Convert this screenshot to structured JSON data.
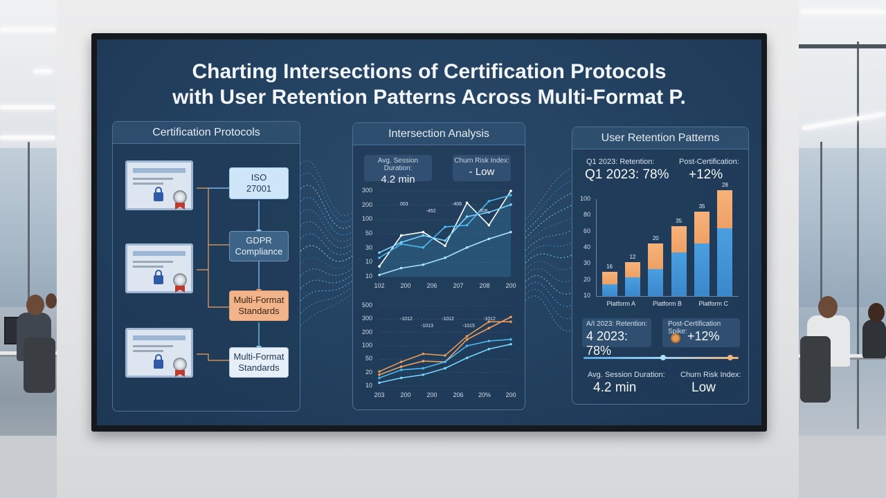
{
  "title_line1": "Charting Intersections of Certification Protocols",
  "title_line2": "with User Retention Patterns Across Multi-Format P.",
  "left_panel": {
    "header": "Certification Protocols",
    "flow": [
      {
        "line1": "ISO",
        "line2": "27001"
      },
      {
        "line1": "GDPR",
        "line2": "Compliance"
      },
      {
        "line1": "Multi-Format",
        "line2": "Standards"
      },
      {
        "line1": "Multi-Format",
        "line2": "Standards"
      }
    ]
  },
  "middle_panel": {
    "header": "Intersection Analysis",
    "metric1_label": "Avg. Session Duration:",
    "metric1_value": "4.2 min",
    "metric2_label": "Churn Risk Index:",
    "metric2_value": "- Low",
    "chart_data": [
      {
        "type": "line",
        "y_ticks": [
          "300",
          "200",
          "100",
          "50",
          "30",
          "10",
          "10"
        ],
        "x_ticks": [
          "102",
          "200",
          "206",
          "207",
          "208",
          "200"
        ],
        "point_labels": [
          "003",
          "-452",
          "-406",
          "-308"
        ],
        "series": [
          {
            "values": [
              0.12,
              0.48,
              0.52,
              0.36,
              0.86,
              0.6,
              1.0
            ]
          },
          {
            "values": [
              0.22,
              0.38,
              0.34,
              0.58,
              0.6,
              0.88,
              0.95
            ]
          },
          {
            "values": [
              0.28,
              0.4,
              0.48,
              0.42,
              0.7,
              0.75,
              0.84
            ]
          },
          {
            "values": [
              0.02,
              0.1,
              0.14,
              0.22,
              0.34,
              0.44,
              0.52
            ]
          }
        ]
      },
      {
        "type": "line",
        "y_ticks": [
          "500",
          "300",
          "200",
          "100",
          "50",
          "20",
          "10"
        ],
        "x_ticks": [
          "203",
          "200",
          "200",
          "206",
          "20%",
          "200"
        ],
        "point_labels": [
          "-1012",
          "-1013",
          "-1012",
          "-1015",
          "-1012"
        ],
        "series": [
          {
            "values": [
              0.14,
              0.24,
              0.31,
              0.3,
              0.58,
              0.72,
              0.86
            ]
          },
          {
            "values": [
              0.18,
              0.3,
              0.4,
              0.38,
              0.62,
              0.8,
              0.8
            ]
          },
          {
            "values": [
              0.1,
              0.2,
              0.22,
              0.3,
              0.5,
              0.56,
              0.58
            ]
          },
          {
            "values": [
              0.04,
              0.1,
              0.14,
              0.22,
              0.35,
              0.46,
              0.52
            ]
          }
        ]
      }
    ]
  },
  "right_panel": {
    "header": "User Retention Patterns",
    "q1_label": "Q1 2023: Retention:",
    "q1_value": "Q1 2023: 78%",
    "post_label": "Post-Certification:",
    "post_value": "+12%",
    "chart_data": {
      "type": "bar",
      "categories": [
        "Platform A",
        "Platform B",
        "Platform C"
      ],
      "y_ticks": [
        "100",
        "80",
        "60",
        "40",
        "30",
        "20",
        "10"
      ],
      "bar_labels": [
        "16",
        "12",
        "20",
        "35",
        "35",
        "28"
      ],
      "bars": [
        {
          "bottom": 0.12,
          "top": 0.13
        },
        {
          "bottom": 0.19,
          "top": 0.16
        },
        {
          "bottom": 0.28,
          "top": 0.26
        },
        {
          "bottom": 0.45,
          "top": 0.27
        },
        {
          "bottom": 0.54,
          "top": 0.33
        },
        {
          "bottom": 0.7,
          "top": 0.39
        }
      ]
    },
    "box1_label": "A/I 2023: Retention:",
    "box1_value": "4 2023: 78%",
    "box2_label": "Post-Certification Spike:",
    "box2_value": "+12%",
    "avg_label": "Avg. Session Duration:",
    "avg_value": "4.2 min",
    "churn_label": "Churn Risk Index:",
    "churn_value": "Low"
  },
  "colors": {
    "screen": "#22405f",
    "line_bright": "#a9e3ff",
    "line_blue": "#4db8f0",
    "accent_orange": "#f0a15f",
    "bar_blue": "#3b87cc"
  }
}
